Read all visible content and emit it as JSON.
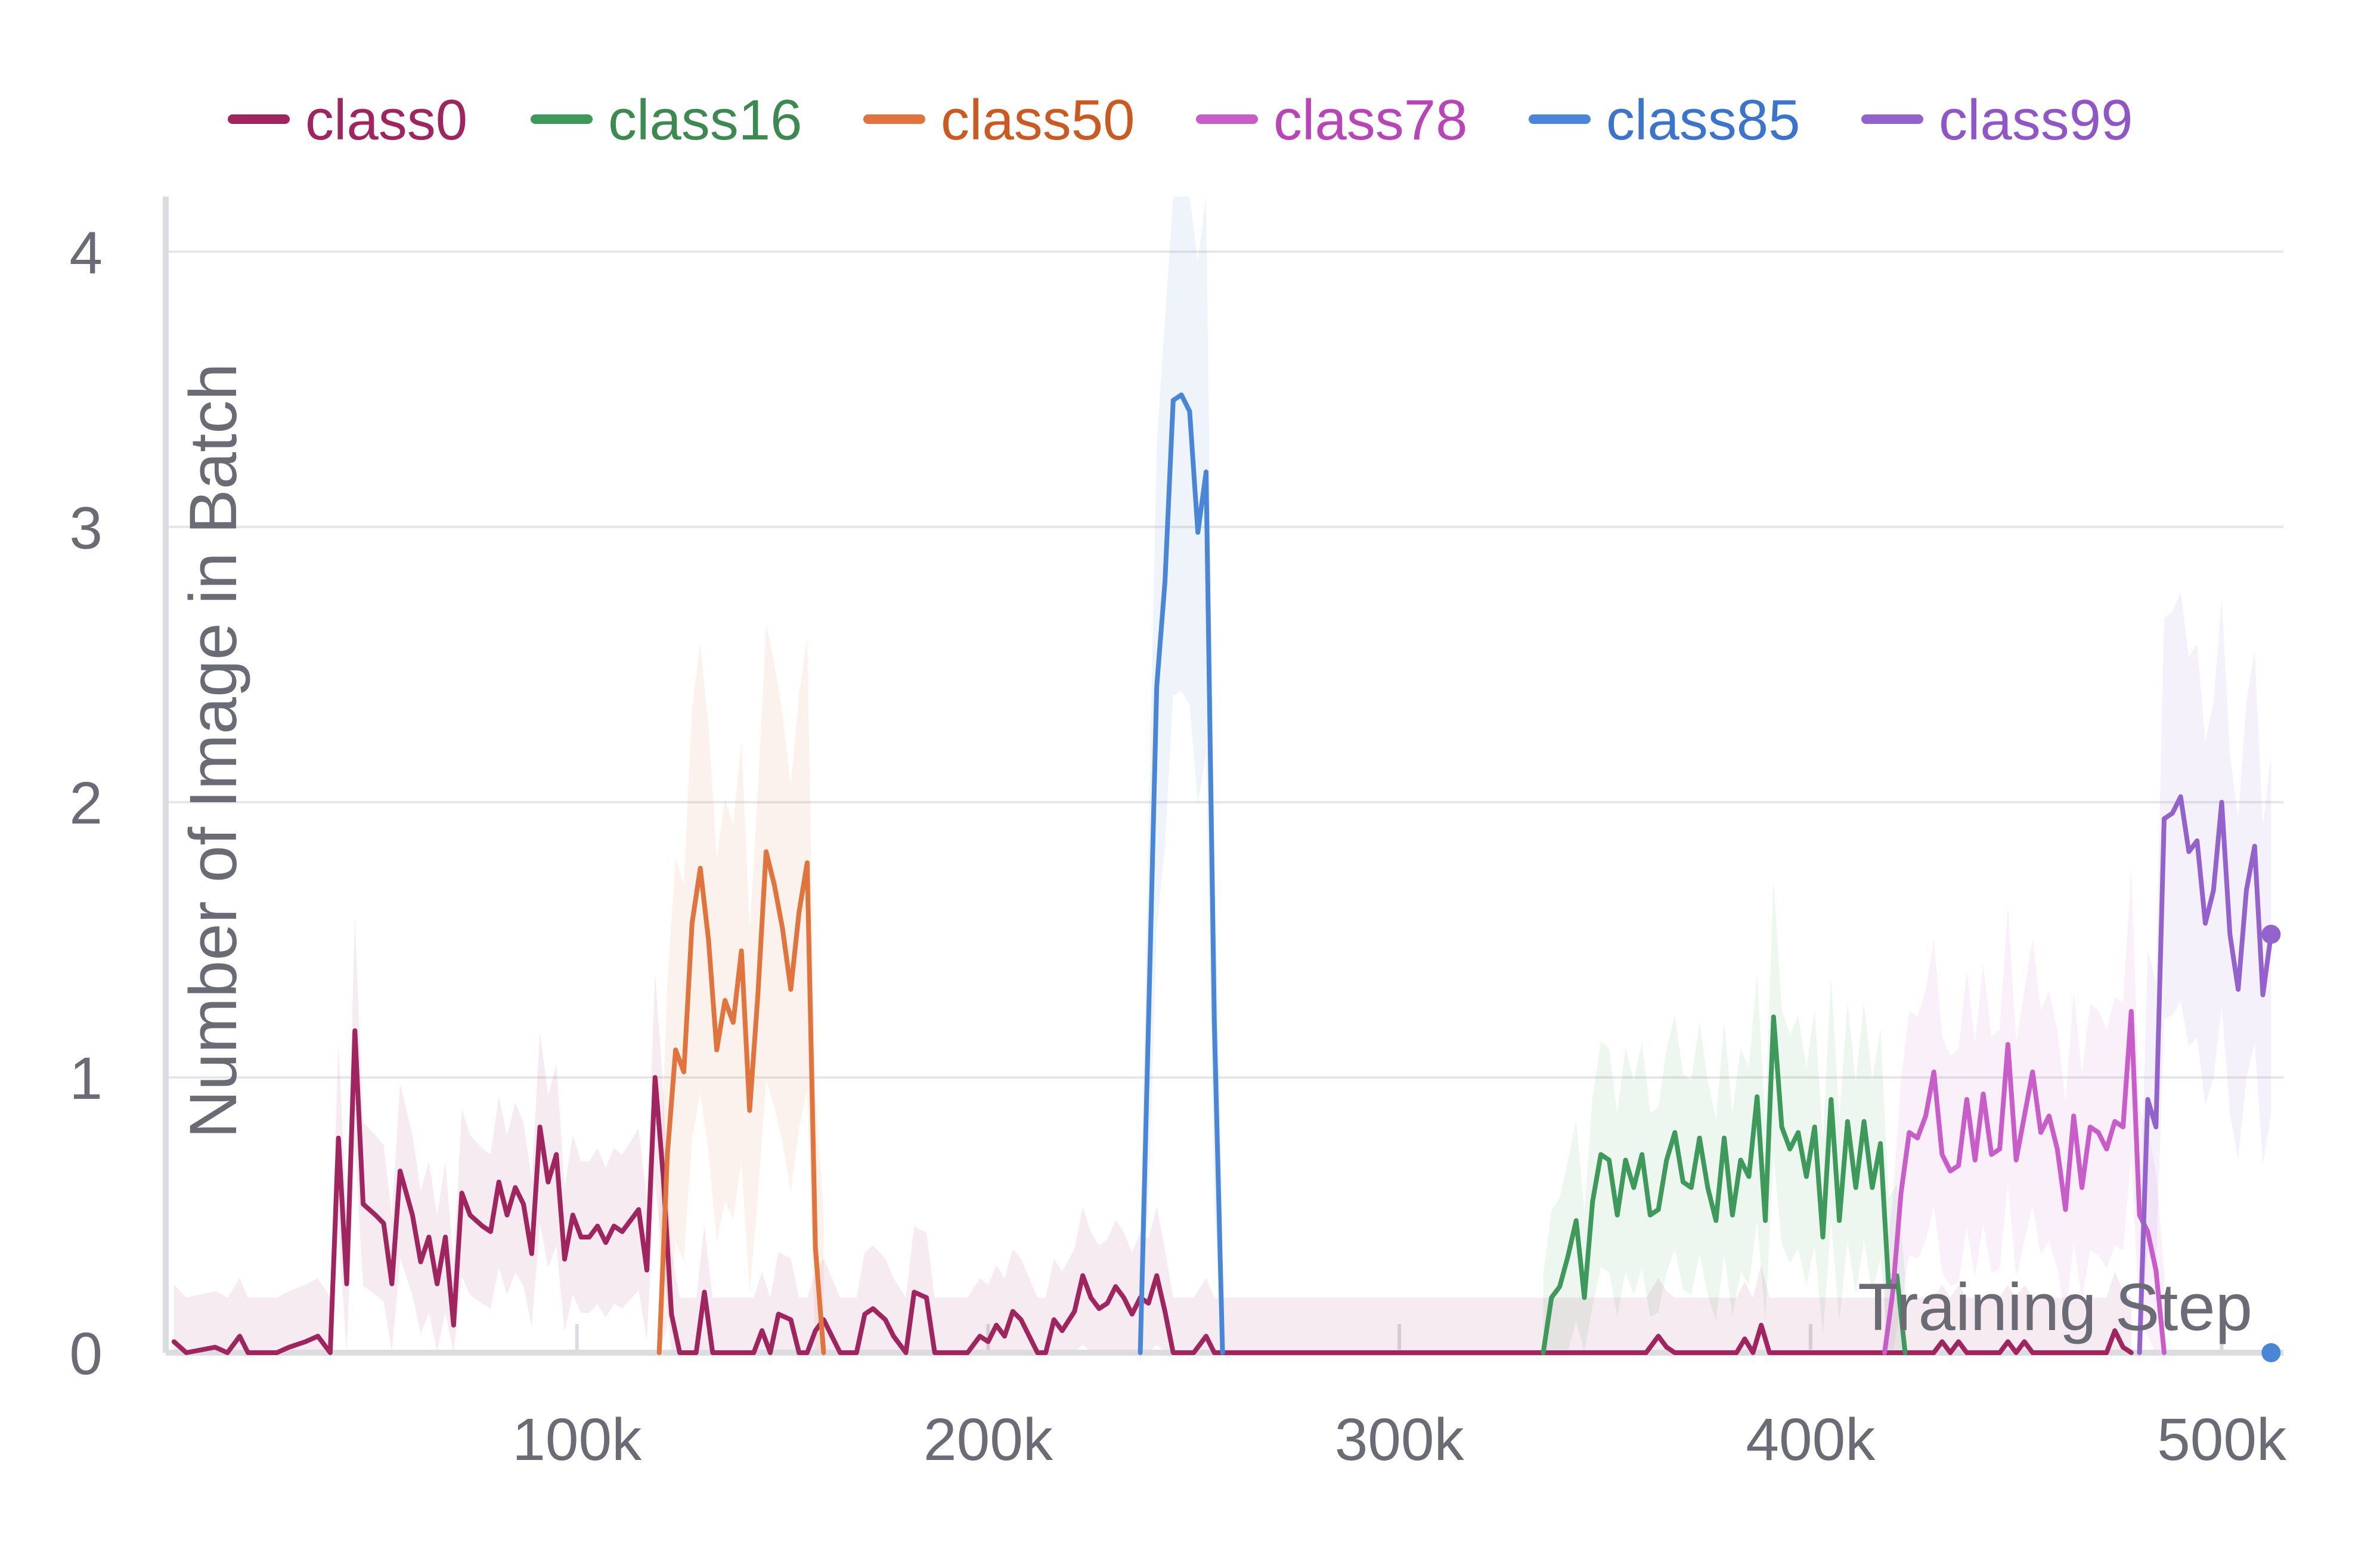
{
  "chart_data": {
    "type": "line",
    "title": "",
    "xlabel": "Training Step",
    "ylabel": "Number of Image in Batch",
    "xlim": [
      0,
      515000
    ],
    "ylim": [
      0,
      4.2
    ],
    "grid": true,
    "legend_position": "top",
    "x_ticks": [
      {
        "value": 100000,
        "label": "100k"
      },
      {
        "value": 200000,
        "label": "200k"
      },
      {
        "value": 300000,
        "label": "300k"
      },
      {
        "value": 400000,
        "label": "400k"
      },
      {
        "value": 500000,
        "label": "500k"
      }
    ],
    "y_ticks": [
      {
        "value": 0,
        "label": "0"
      },
      {
        "value": 1,
        "label": "1"
      },
      {
        "value": 2,
        "label": "2"
      },
      {
        "value": 3,
        "label": "3"
      },
      {
        "value": 4,
        "label": "4"
      }
    ],
    "series": [
      {
        "name": "class0",
        "color": "#a0245e",
        "label_color": "#a0245e",
        "band": 0.2,
        "points": [
          [
            2000,
            0.04
          ],
          [
            5000,
            0
          ],
          [
            12000,
            0.02
          ],
          [
            15000,
            0
          ],
          [
            18000,
            0.06
          ],
          [
            20000,
            0
          ],
          [
            27000,
            0
          ],
          [
            30000,
            0.02
          ],
          [
            34000,
            0.04
          ],
          [
            37000,
            0.06
          ],
          [
            40000,
            0
          ],
          [
            42000,
            0.78
          ],
          [
            44000,
            0.25
          ],
          [
            46000,
            1.17
          ],
          [
            48000,
            0.54
          ],
          [
            51000,
            0.5
          ],
          [
            53000,
            0.47
          ],
          [
            55000,
            0.25
          ],
          [
            57000,
            0.66
          ],
          [
            60000,
            0.5
          ],
          [
            62000,
            0.33
          ],
          [
            64000,
            0.42
          ],
          [
            66000,
            0.25
          ],
          [
            68000,
            0.42
          ],
          [
            70000,
            0.1
          ],
          [
            72000,
            0.58
          ],
          [
            74000,
            0.5
          ],
          [
            77000,
            0.46
          ],
          [
            79000,
            0.44
          ],
          [
            81000,
            0.62
          ],
          [
            83000,
            0.5
          ],
          [
            85000,
            0.6
          ],
          [
            87000,
            0.54
          ],
          [
            89000,
            0.36
          ],
          [
            91000,
            0.82
          ],
          [
            93000,
            0.62
          ],
          [
            95000,
            0.72
          ],
          [
            97000,
            0.34
          ],
          [
            99000,
            0.5
          ],
          [
            101000,
            0.42
          ],
          [
            103000,
            0.42
          ],
          [
            105000,
            0.46
          ],
          [
            107000,
            0.4
          ],
          [
            109000,
            0.46
          ],
          [
            111000,
            0.44
          ],
          [
            113000,
            0.48
          ],
          [
            115000,
            0.52
          ],
          [
            117000,
            0.3
          ],
          [
            119000,
            1.0
          ],
          [
            121000,
            0.64
          ],
          [
            123000,
            0.14
          ],
          [
            125000,
            0
          ],
          [
            129000,
            0
          ],
          [
            131000,
            0.22
          ],
          [
            133000,
            0
          ],
          [
            136000,
            0
          ],
          [
            143000,
            0
          ],
          [
            145000,
            0.08
          ],
          [
            147000,
            0
          ],
          [
            149000,
            0.14
          ],
          [
            152000,
            0.12
          ],
          [
            154000,
            0
          ],
          [
            156000,
            0
          ],
          [
            158000,
            0.08
          ],
          [
            160000,
            0.12
          ],
          [
            162000,
            0.06
          ],
          [
            164000,
            0
          ],
          [
            168000,
            0
          ],
          [
            170000,
            0.14
          ],
          [
            172000,
            0.16
          ],
          [
            175000,
            0.12
          ],
          [
            177000,
            0.06
          ],
          [
            180000,
            0
          ],
          [
            182000,
            0.22
          ],
          [
            185000,
            0.2
          ],
          [
            187000,
            0
          ],
          [
            190000,
            0
          ],
          [
            195000,
            0
          ],
          [
            198000,
            0.06
          ],
          [
            200000,
            0.04
          ],
          [
            202000,
            0.1
          ],
          [
            204000,
            0.06
          ],
          [
            206000,
            0.15
          ],
          [
            208000,
            0.12
          ],
          [
            210000,
            0.06
          ],
          [
            212000,
            0
          ],
          [
            214000,
            0
          ],
          [
            216000,
            0.12
          ],
          [
            218000,
            0.08
          ],
          [
            221000,
            0.15
          ],
          [
            223000,
            0.28
          ],
          [
            225000,
            0.2
          ],
          [
            227000,
            0.16
          ],
          [
            229000,
            0.18
          ],
          [
            231000,
            0.24
          ],
          [
            233000,
            0.2
          ],
          [
            235000,
            0.14
          ],
          [
            237000,
            0.2
          ],
          [
            239000,
            0.18
          ],
          [
            241000,
            0.28
          ],
          [
            243000,
            0.15
          ],
          [
            245000,
            0
          ],
          [
            250000,
            0
          ],
          [
            253000,
            0.06
          ],
          [
            255000,
            0
          ],
          [
            360000,
            0
          ],
          [
            363000,
            0.06
          ],
          [
            365000,
            0.02
          ],
          [
            367000,
            0
          ],
          [
            382000,
            0
          ],
          [
            384000,
            0.05
          ],
          [
            386000,
            0
          ],
          [
            388000,
            0.1
          ],
          [
            390000,
            0
          ],
          [
            430000,
            0
          ],
          [
            432000,
            0.04
          ],
          [
            434000,
            0
          ],
          [
            436000,
            0.04
          ],
          [
            438000,
            0
          ],
          [
            446000,
            0
          ],
          [
            448000,
            0.04
          ],
          [
            450000,
            0
          ],
          [
            452000,
            0.04
          ],
          [
            454000,
            0
          ],
          [
            472000,
            0
          ],
          [
            474000,
            0.08
          ],
          [
            476000,
            0.02
          ],
          [
            478000,
            0
          ]
        ]
      },
      {
        "name": "class16",
        "color": "#3d9a5a",
        "label_color": "#3d8a50",
        "band": 0.28,
        "points": [
          [
            335000,
            0
          ],
          [
            337000,
            0.2
          ],
          [
            339000,
            0.24
          ],
          [
            341000,
            0.35
          ],
          [
            343000,
            0.48
          ],
          [
            345000,
            0.2
          ],
          [
            347000,
            0.55
          ],
          [
            349000,
            0.72
          ],
          [
            351000,
            0.7
          ],
          [
            353000,
            0.5
          ],
          [
            355000,
            0.7
          ],
          [
            357000,
            0.6
          ],
          [
            359000,
            0.72
          ],
          [
            361000,
            0.5
          ],
          [
            363000,
            0.52
          ],
          [
            365000,
            0.7
          ],
          [
            367000,
            0.8
          ],
          [
            369000,
            0.62
          ],
          [
            371000,
            0.6
          ],
          [
            373000,
            0.78
          ],
          [
            375000,
            0.6
          ],
          [
            377000,
            0.48
          ],
          [
            379000,
            0.78
          ],
          [
            381000,
            0.5
          ],
          [
            383000,
            0.7
          ],
          [
            385000,
            0.64
          ],
          [
            387000,
            0.93
          ],
          [
            389000,
            0.48
          ],
          [
            391000,
            1.22
          ],
          [
            393000,
            0.82
          ],
          [
            395000,
            0.74
          ],
          [
            397000,
            0.8
          ],
          [
            399000,
            0.64
          ],
          [
            401000,
            0.82
          ],
          [
            403000,
            0.42
          ],
          [
            405000,
            0.92
          ],
          [
            407000,
            0.48
          ],
          [
            409000,
            0.84
          ],
          [
            411000,
            0.6
          ],
          [
            413000,
            0.84
          ],
          [
            415000,
            0.6
          ],
          [
            417000,
            0.76
          ],
          [
            419000,
            0.24
          ],
          [
            421000,
            0.28
          ],
          [
            423000,
            0
          ]
        ]
      },
      {
        "name": "class50",
        "color": "#e0743c",
        "label_color": "#cc5a20",
        "band": 0.5,
        "points": [
          [
            120000,
            0
          ],
          [
            122000,
            0.72
          ],
          [
            124000,
            1.1
          ],
          [
            126000,
            1.02
          ],
          [
            128000,
            1.56
          ],
          [
            130000,
            1.76
          ],
          [
            132000,
            1.5
          ],
          [
            134000,
            1.1
          ],
          [
            136000,
            1.28
          ],
          [
            138000,
            1.2
          ],
          [
            140000,
            1.46
          ],
          [
            142000,
            0.88
          ],
          [
            144000,
            1.3
          ],
          [
            146000,
            1.82
          ],
          [
            148000,
            1.7
          ],
          [
            150000,
            1.54
          ],
          [
            152000,
            1.32
          ],
          [
            154000,
            1.6
          ],
          [
            156000,
            1.78
          ],
          [
            158000,
            0.38
          ],
          [
            160000,
            0
          ]
        ]
      },
      {
        "name": "class78",
        "color": "#c85cc8",
        "label_color": "#b844b8",
        "band": 0.3,
        "points": [
          [
            418000,
            0
          ],
          [
            420000,
            0.22
          ],
          [
            422000,
            0.58
          ],
          [
            424000,
            0.8
          ],
          [
            426000,
            0.78
          ],
          [
            428000,
            0.86
          ],
          [
            430000,
            1.02
          ],
          [
            432000,
            0.72
          ],
          [
            434000,
            0.66
          ],
          [
            436000,
            0.68
          ],
          [
            438000,
            0.92
          ],
          [
            440000,
            0.7
          ],
          [
            442000,
            0.94
          ],
          [
            444000,
            0.72
          ],
          [
            446000,
            0.74
          ],
          [
            448000,
            1.12
          ],
          [
            450000,
            0.7
          ],
          [
            452000,
            0.86
          ],
          [
            454000,
            1.02
          ],
          [
            456000,
            0.8
          ],
          [
            458000,
            0.86
          ],
          [
            460000,
            0.74
          ],
          [
            462000,
            0.52
          ],
          [
            464000,
            0.86
          ],
          [
            466000,
            0.6
          ],
          [
            468000,
            0.82
          ],
          [
            470000,
            0.8
          ],
          [
            472000,
            0.74
          ],
          [
            474000,
            0.84
          ],
          [
            476000,
            0.82
          ],
          [
            478000,
            1.24
          ],
          [
            480000,
            0.5
          ],
          [
            482000,
            0.44
          ],
          [
            484000,
            0.3
          ],
          [
            486000,
            0
          ]
        ]
      },
      {
        "name": "class85",
        "color": "#4a86d8",
        "label_color": "#3b74cc",
        "band": 0.45,
        "points": [
          [
            237000,
            0
          ],
          [
            239000,
            1.2
          ],
          [
            241000,
            2.42
          ],
          [
            243000,
            2.8
          ],
          [
            245000,
            3.46
          ],
          [
            247000,
            3.48
          ],
          [
            249000,
            3.42
          ],
          [
            251000,
            2.98
          ],
          [
            253000,
            3.2
          ],
          [
            255000,
            1.2
          ],
          [
            257000,
            0
          ]
        ]
      },
      {
        "name": "class99",
        "color": "#9462cc",
        "label_color": "#9056c8",
        "band": 0.38,
        "points": [
          [
            480000,
            0
          ],
          [
            482000,
            0.92
          ],
          [
            484000,
            0.82
          ],
          [
            486000,
            1.94
          ],
          [
            488000,
            1.96
          ],
          [
            490000,
            2.02
          ],
          [
            492000,
            1.82
          ],
          [
            494000,
            1.86
          ],
          [
            496000,
            1.56
          ],
          [
            498000,
            1.68
          ],
          [
            500000,
            2.0
          ],
          [
            502000,
            1.52
          ],
          [
            504000,
            1.32
          ],
          [
            506000,
            1.68
          ],
          [
            508000,
            1.84
          ],
          [
            510000,
            1.3
          ],
          [
            512000,
            1.52
          ]
        ]
      }
    ],
    "end_markers": [
      {
        "series": "class99",
        "x": 512000,
        "y": 1.52
      },
      {
        "series": "class85",
        "x": 512000,
        "y": 0
      }
    ]
  }
}
